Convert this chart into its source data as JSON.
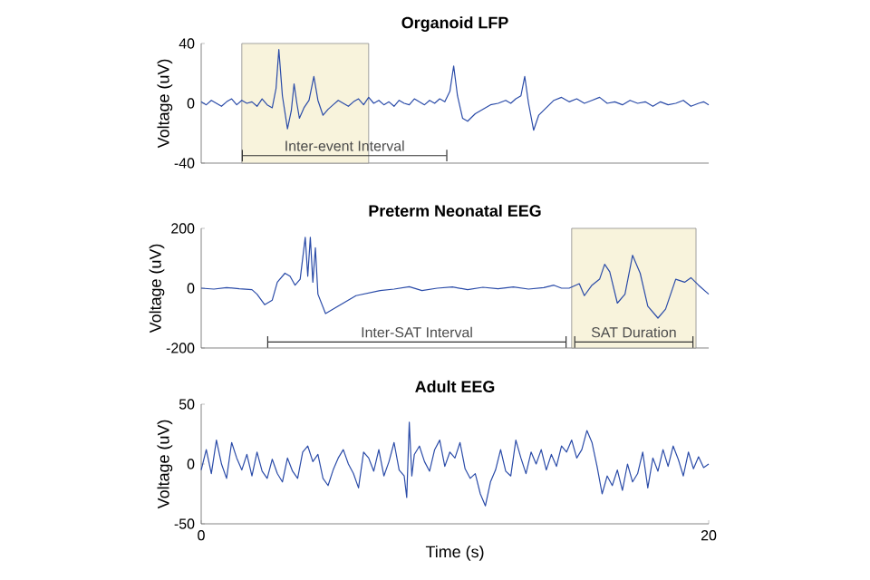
{
  "chart_data": [
    {
      "type": "line",
      "title": "Organoid LFP",
      "ylabel": "Voltage (uV)",
      "xlim": [
        0,
        20
      ],
      "ylim": [
        -40,
        40
      ],
      "yticks": [
        -40,
        0,
        40
      ],
      "tick_labels": "y",
      "bands": [
        {
          "axis": "x",
          "from": 1.6,
          "to": 6.6,
          "color": "#f8f3dc"
        }
      ],
      "annotations": [
        {
          "text": "Inter-event Interval",
          "x": 5.65,
          "y": -35
        }
      ],
      "series": [
        {
          "type": "line",
          "color": "#333333",
          "x": [
            1.6,
            9.7
          ],
          "values": [
            -35,
            -35
          ]
        },
        {
          "color": "#2a4ba8",
          "x": [
            0,
            0.2,
            0.4,
            0.6,
            0.8,
            1.0,
            1.2,
            1.4,
            1.6,
            1.8,
            2.0,
            2.2,
            2.4,
            2.6,
            2.8,
            2.95,
            3.06,
            3.2,
            3.4,
            3.55,
            3.66,
            3.77,
            3.87,
            4.05,
            4.25,
            4.44,
            4.6,
            4.8,
            5.0,
            5.2,
            5.4,
            5.6,
            5.8,
            6.0,
            6.2,
            6.4,
            6.6,
            6.8,
            7.0,
            7.2,
            7.4,
            7.6,
            7.8,
            8.0,
            8.2,
            8.4,
            8.6,
            8.8,
            9.0,
            9.2,
            9.4,
            9.6,
            9.8,
            9.95,
            10.1,
            10.3,
            10.5,
            10.8,
            11.1,
            11.4,
            11.7,
            12.0,
            12.2,
            12.4,
            12.6,
            12.75,
            12.9,
            13.1,
            13.3,
            13.6,
            13.9,
            14.2,
            14.5,
            14.8,
            15.1,
            15.4,
            15.7,
            16.0,
            16.3,
            16.6,
            16.9,
            17.2,
            17.5,
            17.8,
            18.1,
            18.4,
            18.7,
            19.0,
            19.3,
            19.6,
            19.8,
            20
          ],
          "values": [
            1,
            -1,
            2,
            0,
            -2,
            1,
            3,
            -1,
            2,
            0,
            1,
            -2,
            3,
            -1,
            -3,
            10,
            36,
            5,
            -17,
            -5,
            13,
            0,
            -10,
            -3,
            2,
            18,
            2,
            -8,
            -4,
            -1,
            2,
            0,
            -2,
            1,
            3,
            -1,
            4,
            0,
            2,
            -1,
            1,
            -2,
            2,
            0,
            -1,
            3,
            1,
            -1,
            2,
            0,
            3,
            1,
            8,
            25,
            5,
            -10,
            -12,
            -7,
            -4,
            -1,
            0,
            2,
            0,
            3,
            5,
            18,
            0,
            -18,
            -8,
            -3,
            2,
            4,
            1,
            3,
            0,
            2,
            4,
            0,
            1,
            -1,
            2,
            0,
            1,
            -2,
            1,
            -1,
            0,
            2,
            -2,
            0,
            1,
            -1
          ]
        }
      ]
    },
    {
      "type": "line",
      "title": "Preterm Neonatal EEG",
      "ylabel": "Voltage (uV)",
      "xlim": [
        0,
        20
      ],
      "ylim": [
        -200,
        200
      ],
      "yticks": [
        -200,
        0,
        200
      ],
      "tick_labels": "y",
      "bands": [
        {
          "axis": "x",
          "from": 14.6,
          "to": 19.5,
          "color": "#f8f3dc"
        }
      ],
      "annotations": [
        {
          "text": "Inter-SAT Interval",
          "x": 8.5,
          "y": -180
        },
        {
          "text": "SAT Duration",
          "x": 17.05,
          "y": -180
        }
      ],
      "series": [
        {
          "type": "line",
          "color": "#333333",
          "x": [
            2.6,
            14.4
          ],
          "values": [
            -180,
            -180
          ]
        },
        {
          "type": "line",
          "color": "#333333",
          "x": [
            14.7,
            19.4
          ],
          "values": [
            -180,
            -180
          ]
        },
        {
          "color": "#2a4ba8",
          "x": [
            0,
            0.5,
            1.0,
            1.5,
            2.0,
            2.2,
            2.5,
            2.8,
            3.0,
            3.3,
            3.5,
            3.7,
            3.9,
            4.1,
            4.2,
            4.3,
            4.4,
            4.5,
            4.6,
            4.9,
            5.4,
            6.1,
            7.05,
            7.6,
            8.2,
            8.7,
            9.3,
            9.9,
            10.5,
            11.1,
            11.7,
            12.3,
            12.9,
            13.5,
            13.9,
            14.2,
            14.5,
            14.9,
            15.1,
            15.4,
            15.7,
            15.9,
            16.1,
            16.4,
            16.7,
            17.0,
            17.3,
            17.6,
            18.0,
            18.3,
            18.7,
            19.05,
            19.3,
            19.6,
            20
          ],
          "values": [
            0,
            -3,
            2,
            -2,
            -5,
            -20,
            -55,
            -40,
            20,
            50,
            40,
            10,
            30,
            170,
            40,
            170,
            20,
            135,
            -20,
            -85,
            -60,
            -25,
            -8,
            -3,
            5,
            -8,
            0,
            4,
            -5,
            3,
            -2,
            4,
            -3,
            2,
            10,
            0,
            0,
            15,
            -25,
            10,
            30,
            80,
            55,
            -50,
            -20,
            110,
            50,
            -60,
            -100,
            -70,
            30,
            20,
            35,
            10,
            -20
          ]
        }
      ]
    },
    {
      "type": "line",
      "title": "Adult EEG",
      "xlabel": "Time (s)",
      "ylabel": "Voltage (uV)",
      "xlim": [
        0,
        20
      ],
      "ylim": [
        -50,
        50
      ],
      "yticks": [
        -50,
        0,
        50
      ],
      "xticks": [
        0,
        20
      ],
      "series": [
        {
          "color": "#2a4ba8",
          "x": [
            0,
            0.2,
            0.4,
            0.6,
            0.8,
            1.0,
            1.2,
            1.4,
            1.6,
            1.8,
            2.0,
            2.2,
            2.4,
            2.6,
            2.8,
            3.0,
            3.2,
            3.4,
            3.6,
            3.8,
            4.0,
            4.2,
            4.4,
            4.6,
            4.8,
            5.0,
            5.2,
            5.4,
            5.6,
            5.8,
            6.0,
            6.2,
            6.4,
            6.6,
            6.8,
            7.0,
            7.2,
            7.4,
            7.6,
            7.8,
            8.0,
            8.1,
            8.2,
            8.3,
            8.4,
            8.6,
            8.8,
            9.0,
            9.2,
            9.4,
            9.6,
            9.8,
            10.0,
            10.2,
            10.4,
            10.6,
            10.8,
            11.0,
            11.2,
            11.4,
            11.6,
            11.8,
            12.0,
            12.2,
            12.4,
            12.6,
            12.8,
            13.0,
            13.2,
            13.4,
            13.6,
            13.8,
            14.0,
            14.2,
            14.4,
            14.6,
            14.8,
            15.0,
            15.2,
            15.4,
            15.6,
            15.8,
            16.0,
            16.2,
            16.4,
            16.6,
            16.8,
            17.0,
            17.2,
            17.4,
            17.6,
            17.8,
            18.0,
            18.2,
            18.4,
            18.6,
            18.8,
            19.0,
            19.2,
            19.4,
            19.6,
            19.8,
            20
          ],
          "values": [
            -5,
            12,
            -8,
            20,
            0,
            -12,
            18,
            5,
            -5,
            8,
            -10,
            10,
            -6,
            -12,
            4,
            -8,
            -15,
            5,
            -6,
            -12,
            10,
            15,
            2,
            8,
            -12,
            -18,
            -5,
            5,
            12,
            0,
            -8,
            -20,
            10,
            5,
            -6,
            12,
            -10,
            2,
            18,
            -5,
            -10,
            -28,
            35,
            -10,
            8,
            15,
            2,
            -6,
            12,
            20,
            -2,
            10,
            5,
            18,
            -4,
            -12,
            -8,
            -25,
            -35,
            -15,
            -5,
            12,
            -6,
            -10,
            20,
            5,
            -8,
            10,
            0,
            12,
            -5,
            8,
            -2,
            15,
            10,
            20,
            5,
            12,
            28,
            18,
            -2,
            -25,
            -10,
            -18,
            -5,
            -22,
            0,
            -15,
            -8,
            10,
            -20,
            5,
            -6,
            12,
            -2,
            15,
            4,
            -10,
            10,
            -4,
            6,
            -3,
            0
          ]
        }
      ]
    }
  ]
}
